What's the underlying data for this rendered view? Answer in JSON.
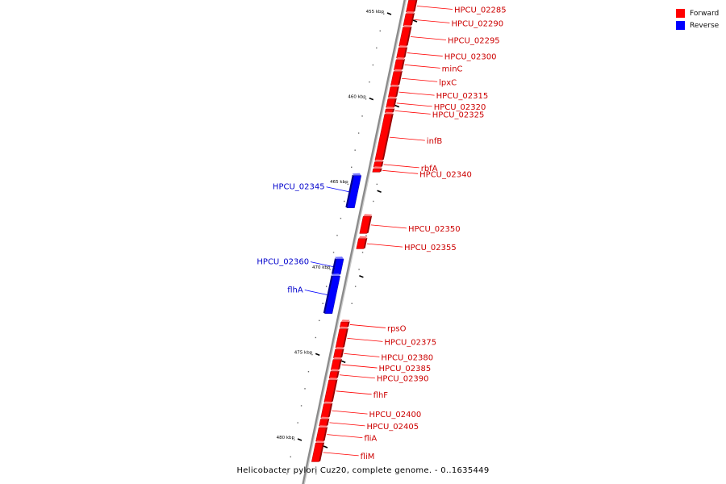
{
  "title": "Helicobacter pylori Cuz20, complete genome. - 0..1635449",
  "legend": {
    "forward": {
      "label": "Forward",
      "color": "#ff0000"
    },
    "reverse": {
      "label": "Reverse",
      "color": "#0000ff"
    }
  },
  "colors": {
    "forward": "#ff0000",
    "reverse": "#0000ff",
    "backbone": "#8a8a8a",
    "forward_label": "#cc0000",
    "reverse_label": "#0000cc"
  },
  "genes": [
    {
      "name": "HPCU_02285",
      "strand": "forward",
      "start_kbp": 454.2,
      "end_kbp": 454.9
    },
    {
      "name": "HPCU_02290",
      "strand": "forward",
      "start_kbp": 455.0,
      "end_kbp": 455.7
    },
    {
      "name": "HPCU_02295",
      "strand": "forward",
      "start_kbp": 455.8,
      "end_kbp": 456.9
    },
    {
      "name": "HPCU_02300",
      "strand": "forward",
      "start_kbp": 457.0,
      "end_kbp": 457.6
    },
    {
      "name": "minC",
      "strand": "forward",
      "start_kbp": 457.7,
      "end_kbp": 458.3
    },
    {
      "name": "lpxC",
      "strand": "forward",
      "start_kbp": 458.4,
      "end_kbp": 459.2
    },
    {
      "name": "HPCU_02315",
      "strand": "forward",
      "start_kbp": 459.3,
      "end_kbp": 459.9
    },
    {
      "name": "HPCU_02320",
      "strand": "forward",
      "start_kbp": 460.0,
      "end_kbp": 460.5
    },
    {
      "name": "HPCU_02325",
      "strand": "forward",
      "start_kbp": 460.6,
      "end_kbp": 460.8
    },
    {
      "name": "infB",
      "strand": "forward",
      "start_kbp": 460.9,
      "end_kbp": 463.6
    },
    {
      "name": "rbfA",
      "strand": "forward",
      "start_kbp": 463.7,
      "end_kbp": 464.0
    },
    {
      "name": "HPCU_02340",
      "strand": "forward",
      "start_kbp": 464.1,
      "end_kbp": 464.3
    },
    {
      "name": "HPCU_02345",
      "strand": "reverse",
      "start_kbp": 464.5,
      "end_kbp": 466.4
    },
    {
      "name": "HPCU_02350",
      "strand": "forward",
      "start_kbp": 466.9,
      "end_kbp": 467.9
    },
    {
      "name": "HPCU_02355",
      "strand": "forward",
      "start_kbp": 468.2,
      "end_kbp": 468.8
    },
    {
      "name": "HPCU_02360",
      "strand": "reverse",
      "start_kbp": 469.4,
      "end_kbp": 470.3
    },
    {
      "name": "flhA",
      "strand": "reverse",
      "start_kbp": 470.4,
      "end_kbp": 472.6
    },
    {
      "name": "rpsO",
      "strand": "forward",
      "start_kbp": 473.1,
      "end_kbp": 473.4
    },
    {
      "name": "HPCU_02375",
      "strand": "forward",
      "start_kbp": 473.5,
      "end_kbp": 474.6
    },
    {
      "name": "HPCU_02380",
      "strand": "forward",
      "start_kbp": 474.7,
      "end_kbp": 475.2
    },
    {
      "name": "HPCU_02385",
      "strand": "forward",
      "start_kbp": 475.3,
      "end_kbp": 475.9
    },
    {
      "name": "HPCU_02390",
      "strand": "forward",
      "start_kbp": 476.0,
      "end_kbp": 476.4
    },
    {
      "name": "flhF",
      "strand": "forward",
      "start_kbp": 476.5,
      "end_kbp": 477.8
    },
    {
      "name": "HPCU_02400",
      "strand": "forward",
      "start_kbp": 477.9,
      "end_kbp": 478.7
    },
    {
      "name": "HPCU_02405",
      "strand": "forward",
      "start_kbp": 478.8,
      "end_kbp": 479.2
    },
    {
      "name": "fliA",
      "strand": "forward",
      "start_kbp": 479.3,
      "end_kbp": 480.1
    },
    {
      "name": "fliM",
      "strand": "forward",
      "start_kbp": 480.2,
      "end_kbp": 481.3
    }
  ],
  "axis_labels": [
    {
      "kbp": 455,
      "text": "455 kbp"
    },
    {
      "kbp": 460,
      "text": "460 kbp"
    },
    {
      "kbp": 465,
      "text": "465 kbp"
    },
    {
      "kbp": 470,
      "text": "470 kbp"
    },
    {
      "kbp": 475,
      "text": "475 kbp"
    },
    {
      "kbp": 480,
      "text": "480 kbp"
    }
  ]
}
